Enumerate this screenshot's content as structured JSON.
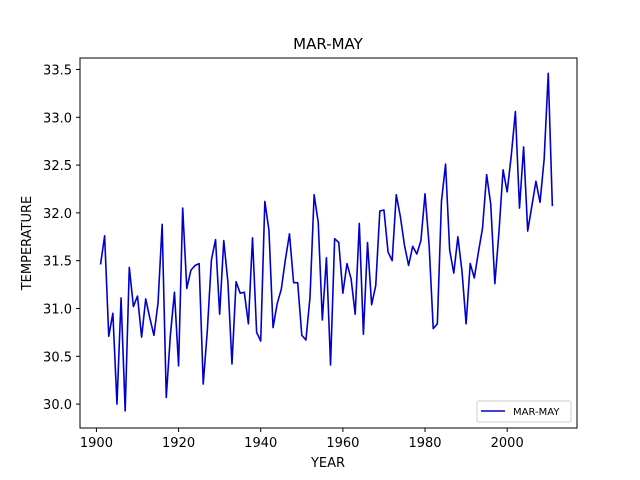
{
  "chart_data": {
    "type": "line",
    "title": "MAR-MAY",
    "xlabel": "YEAR",
    "ylabel": "TEMPERATURE",
    "xlim": [
      1896,
      2017
    ],
    "ylim": [
      29.75,
      33.62
    ],
    "xticks": [
      1900,
      1920,
      1940,
      1960,
      1980,
      2000
    ],
    "yticks": [
      30.0,
      30.5,
      31.0,
      31.5,
      32.0,
      32.5,
      33.0,
      33.5
    ],
    "grid": false,
    "legend_position": "lower-right",
    "series": [
      {
        "name": "MAR-MAY",
        "color": "#0000cc",
        "x": [
          1901,
          1902,
          1903,
          1904,
          1905,
          1906,
          1907,
          1908,
          1909,
          1910,
          1911,
          1912,
          1913,
          1914,
          1915,
          1916,
          1917,
          1918,
          1919,
          1920,
          1921,
          1922,
          1923,
          1924,
          1925,
          1926,
          1927,
          1928,
          1929,
          1930,
          1931,
          1932,
          1933,
          1934,
          1935,
          1936,
          1937,
          1938,
          1939,
          1940,
          1941,
          1942,
          1943,
          1944,
          1945,
          1946,
          1947,
          1948,
          1949,
          1950,
          1951,
          1952,
          1953,
          1954,
          1955,
          1956,
          1957,
          1958,
          1959,
          1960,
          1961,
          1962,
          1963,
          1964,
          1965,
          1966,
          1967,
          1968,
          1969,
          1970,
          1971,
          1972,
          1973,
          1974,
          1975,
          1976,
          1977,
          1978,
          1979,
          1980,
          1981,
          1982,
          1983,
          1984,
          1985,
          1986,
          1987,
          1988,
          1989,
          1990,
          1991,
          1992,
          1993,
          1994,
          1995,
          1996,
          1997,
          1998,
          1999,
          2000,
          2001,
          2002,
          2003,
          2004,
          2005,
          2006,
          2007,
          2008,
          2009,
          2010,
          2011
        ],
        "values": [
          31.46,
          31.76,
          30.71,
          30.95,
          30.0,
          31.11,
          29.93,
          31.43,
          31.02,
          31.13,
          30.7,
          31.1,
          30.9,
          30.72,
          31.06,
          31.88,
          30.07,
          30.72,
          31.17,
          30.4,
          32.05,
          31.21,
          31.4,
          31.45,
          31.47,
          30.21,
          30.77,
          31.51,
          31.72,
          30.94,
          31.71,
          31.28,
          30.42,
          31.28,
          31.16,
          31.17,
          30.84,
          31.74,
          30.75,
          30.66,
          32.12,
          31.82,
          30.8,
          31.05,
          31.2,
          31.51,
          31.78,
          31.27,
          31.27,
          30.72,
          30.67,
          31.12,
          32.19,
          31.9,
          30.88,
          31.53,
          30.41,
          31.73,
          31.69,
          31.16,
          31.47,
          31.31,
          30.94,
          31.89,
          30.73,
          31.69,
          31.04,
          31.24,
          32.02,
          32.03,
          31.59,
          31.5,
          32.19,
          31.96,
          31.66,
          31.45,
          31.65,
          31.57,
          31.71,
          32.2,
          31.66,
          30.79,
          30.84,
          32.12,
          32.51,
          31.61,
          31.37,
          31.75,
          31.39,
          30.84,
          31.47,
          31.32,
          31.59,
          31.84,
          32.4,
          32.09,
          31.26,
          31.8,
          32.45,
          32.22,
          32.6,
          33.06,
          32.05,
          32.69,
          31.81,
          32.07,
          32.33,
          32.11,
          32.56,
          33.46,
          32.07
        ]
      }
    ]
  }
}
